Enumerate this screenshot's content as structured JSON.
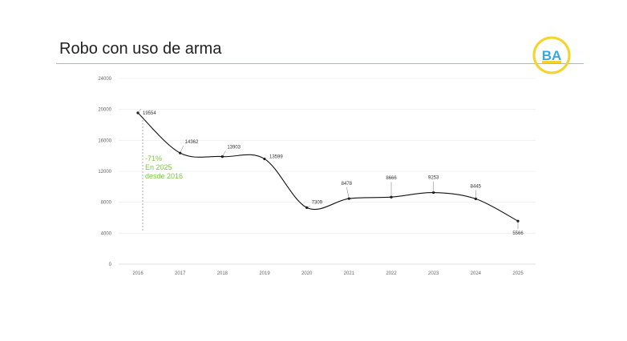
{
  "title": "Robo con uso de arma",
  "logo": {
    "text": "BA",
    "icon": "ba-logo-icon",
    "ring_color": "#f5d328",
    "text_color": "#35a9dc"
  },
  "colors": {
    "rule": "#7fc4ea",
    "line": "#111111",
    "annotation": "#7ac943",
    "grid": "#eeeeee"
  },
  "chart_data": {
    "type": "line",
    "x": [
      "2016",
      "2017",
      "2018",
      "2019",
      "2020",
      "2021",
      "2022",
      "2023",
      "2024",
      "2025"
    ],
    "series": [
      {
        "values": [
          19554,
          14362,
          13903,
          13599,
          7309,
          8478,
          8666,
          9253,
          8445,
          5566
        ]
      }
    ],
    "ylim": [
      0,
      24000
    ],
    "yticks": [
      0,
      4000,
      8000,
      12000,
      16000,
      20000,
      24000
    ],
    "grid": true,
    "smooth": true,
    "annotation": {
      "x": "2016",
      "lines": [
        "-71%",
        "En 2025",
        "desde 2016"
      ]
    }
  }
}
